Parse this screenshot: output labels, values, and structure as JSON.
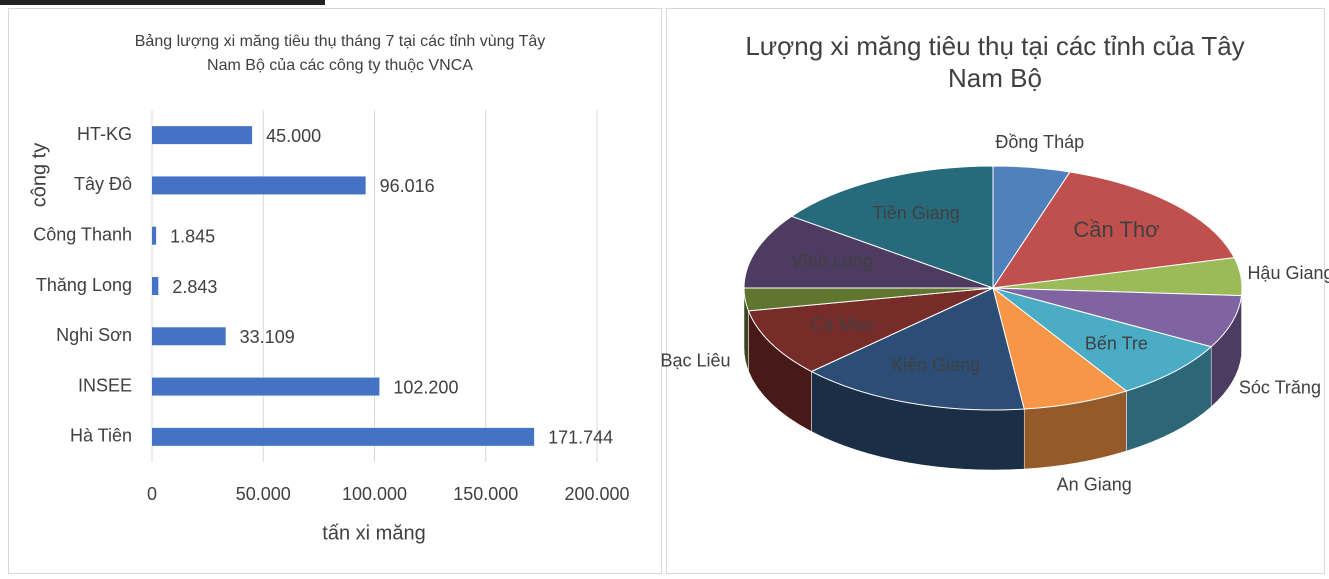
{
  "chart_data": [
    {
      "type": "bar",
      "orientation": "horizontal",
      "title": "Bảng lượng xi măng tiêu thụ tháng 7 tại các tỉnh vùng Tây Nam Bộ của các công ty thuộc VNCA",
      "categories": [
        "HT-KG",
        "Tây Đô",
        "Công Thanh",
        "Thăng Long",
        "Nghi Sơn",
        "INSEE",
        "Hà Tiên"
      ],
      "values": [
        45000,
        96016,
        1845,
        2843,
        33109,
        102200,
        171744
      ],
      "value_labels": [
        "45.000",
        "96.016",
        "1.845",
        "2.843",
        "33.109",
        "102.200",
        "171.744"
      ],
      "color": "#4472c4",
      "xlim": [
        0,
        200000
      ],
      "xticks": [
        0,
        {
          "value": 50000,
          "label": "50.000"
        },
        {
          "value": 100000,
          "label": "100.000"
        },
        {
          "value": 150000,
          "label": "150.000"
        },
        {
          "value": 200000,
          "label": "200.000"
        }
      ],
      "xlabel": "tấn xi măng",
      "ylabel": "công ty",
      "grid": true
    },
    {
      "type": "pie",
      "title": "Lượng xi măng tiêu thụ tại các tỉnh của Tây Nam Bộ",
      "categories": [
        "Đồng Tháp",
        "Cần Thơ",
        "Hậu Giang",
        "Sóc Trăng",
        "Bến Tre",
        "An Giang",
        "Kiên Giang",
        "Cà Mau",
        "Bạc Liêu",
        "Vĩnh Long",
        "Tiền Giang"
      ],
      "values": [
        5,
        16,
        5,
        7,
        8,
        7,
        15,
        9,
        3,
        10,
        15
      ],
      "colors": [
        "#4f81bd",
        "#c0504d",
        "#9bbb59",
        "#8064a2",
        "#4bacc6",
        "#f79646",
        "#2c4d75",
        "#772c2a",
        "#5f7530",
        "#4d3b62",
        "#276a7c"
      ]
    }
  ]
}
